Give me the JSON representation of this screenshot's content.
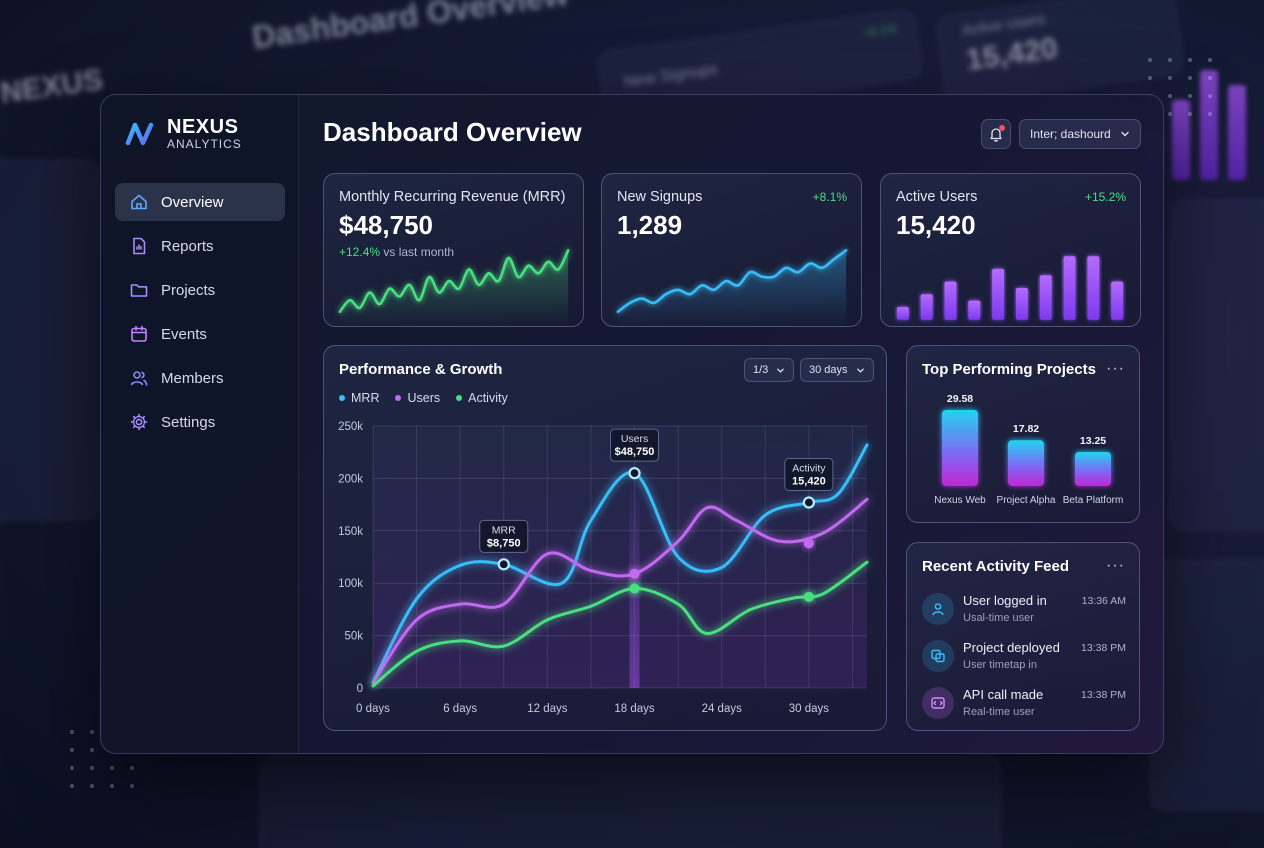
{
  "app": {
    "brand": "NEXUS",
    "brand_sub": "ANALYTICS",
    "page_title": "Dashboard Overview",
    "top_select": "Inter; dashourd"
  },
  "sidebar": {
    "items": [
      {
        "label": "Overview",
        "icon": "home-icon",
        "active": true
      },
      {
        "label": "Reports",
        "icon": "report-icon",
        "active": false
      },
      {
        "label": "Projects",
        "icon": "folder-icon",
        "active": false
      },
      {
        "label": "Events",
        "icon": "calendar-icon",
        "active": false
      },
      {
        "label": "Members",
        "icon": "users-icon",
        "active": false
      },
      {
        "label": "Settings",
        "icon": "gear-icon",
        "active": false
      }
    ]
  },
  "kpis": {
    "mrr": {
      "title": "Monthly Recurring Revenue (MRR)",
      "value": "$48,750",
      "delta": "+12.4%",
      "delta_suffix": " vs last month",
      "color": "#4ade80"
    },
    "signups": {
      "title": "New Signups",
      "value": "1,289",
      "delta": "+8.1%",
      "color": "#38bdf8"
    },
    "active": {
      "title": "Active Users",
      "value": "15,420",
      "delta": "+15.2%",
      "color": "#a855f7"
    }
  },
  "sparklines": {
    "mrr": [
      2,
      5,
      3,
      7,
      4,
      8,
      6,
      9,
      5,
      11,
      7,
      10,
      8,
      13,
      9,
      12,
      10,
      16,
      11,
      14,
      12,
      15,
      13,
      18
    ],
    "signups": [
      3,
      5,
      6,
      5,
      7,
      8,
      7,
      9,
      8,
      10,
      9,
      12,
      11,
      11,
      13,
      12,
      14,
      13,
      15,
      17
    ],
    "active": [
      2,
      4,
      6,
      3,
      8,
      5,
      7,
      10,
      10,
      6
    ]
  },
  "performance": {
    "title": "Performance & Growth",
    "select_a": "1/3",
    "select_b": "30 days",
    "legend": [
      "MRR",
      "Users",
      "Activity"
    ]
  },
  "chart_data": {
    "type": "line",
    "title": "Performance & Growth",
    "x_ticks": [
      "0 days",
      "6 days",
      "12 days",
      "18 days",
      "24 days",
      "30 days"
    ],
    "y_ticks": [
      "0",
      "50k",
      "100k",
      "150k",
      "200k",
      "250k"
    ],
    "ylim": [
      0,
      250000
    ],
    "xlim": [
      0,
      34
    ],
    "grid": true,
    "legend_position": "top-left",
    "series": [
      {
        "name": "MRR",
        "color": "#38bdf8",
        "points": [
          [
            0,
            5000
          ],
          [
            3,
            85000
          ],
          [
            6,
            117000
          ],
          [
            9,
            118000
          ],
          [
            13,
            100000
          ],
          [
            15,
            160000
          ],
          [
            18,
            205000
          ],
          [
            21,
            125000
          ],
          [
            24,
            115000
          ],
          [
            27,
            165000
          ],
          [
            30,
            177000
          ],
          [
            32,
            185000
          ],
          [
            34,
            232000
          ]
        ]
      },
      {
        "name": "Users",
        "color": "#c06bf0",
        "points": [
          [
            0,
            5000
          ],
          [
            3,
            65000
          ],
          [
            6,
            80000
          ],
          [
            9,
            80000
          ],
          [
            12,
            128000
          ],
          [
            15,
            112000
          ],
          [
            18,
            109000
          ],
          [
            21,
            140000
          ],
          [
            23,
            172000
          ],
          [
            25,
            160000
          ],
          [
            28,
            140000
          ],
          [
            31,
            148000
          ],
          [
            34,
            180000
          ]
        ]
      },
      {
        "name": "Activity",
        "color": "#4ade80",
        "points": [
          [
            0,
            2000
          ],
          [
            3,
            35000
          ],
          [
            6,
            45000
          ],
          [
            9,
            40000
          ],
          [
            12,
            65000
          ],
          [
            15,
            78000
          ],
          [
            18,
            95000
          ],
          [
            21,
            80000
          ],
          [
            23,
            52000
          ],
          [
            26,
            75000
          ],
          [
            29,
            86000
          ],
          [
            31,
            90000
          ],
          [
            34,
            120000
          ]
        ]
      }
    ],
    "annotations": [
      {
        "label": "MRR",
        "value": "$8,750",
        "x": 9,
        "y": 118000,
        "series": "MRR"
      },
      {
        "label": "Users",
        "value": "$48,750",
        "x": 18,
        "y": 205000,
        "series": "MRR"
      },
      {
        "label": "Activity",
        "value": "15,420",
        "x": 30,
        "y": 177000,
        "series": "MRR"
      }
    ],
    "markers": [
      {
        "x": 18,
        "y": 109000,
        "series": "Users"
      },
      {
        "x": 30,
        "y": 138000,
        "series": "Users"
      },
      {
        "x": 18,
        "y": 95000,
        "series": "Activity"
      },
      {
        "x": 30,
        "y": 87000,
        "series": "Activity"
      }
    ]
  },
  "top_projects": {
    "title": "Top Performing Projects",
    "more": "···",
    "items": [
      {
        "name": "Nexus Web",
        "value": 29.58,
        "label": "29.58"
      },
      {
        "name": "Project Alpha",
        "value": 17.82,
        "label": "17.82"
      },
      {
        "name": "Beta Platform",
        "value": 13.25,
        "label": "13.25"
      }
    ]
  },
  "activity": {
    "title": "Recent Activity Feed",
    "more": "···",
    "items": [
      {
        "title": "User logged in",
        "sub": "Usal-time user",
        "time": "13:36 AM",
        "icon": "user-icon",
        "color": "#38bdf8"
      },
      {
        "title": "Project deployed",
        "sub": "User timetap in",
        "time": "13:38 PM",
        "icon": "deploy-icon",
        "color": "#38bdf8"
      },
      {
        "title": "API call made",
        "sub": "Real-time user",
        "time": "13:38 PM",
        "icon": "api-icon",
        "color": "#c06bf0"
      }
    ]
  },
  "backdrop": {
    "title": "Dashboard Overview",
    "brand": "NEXUS",
    "stat_label": "Active Users",
    "stat_value": "15,420",
    "signups_label": "New Signups",
    "delta": "+8.1%"
  }
}
